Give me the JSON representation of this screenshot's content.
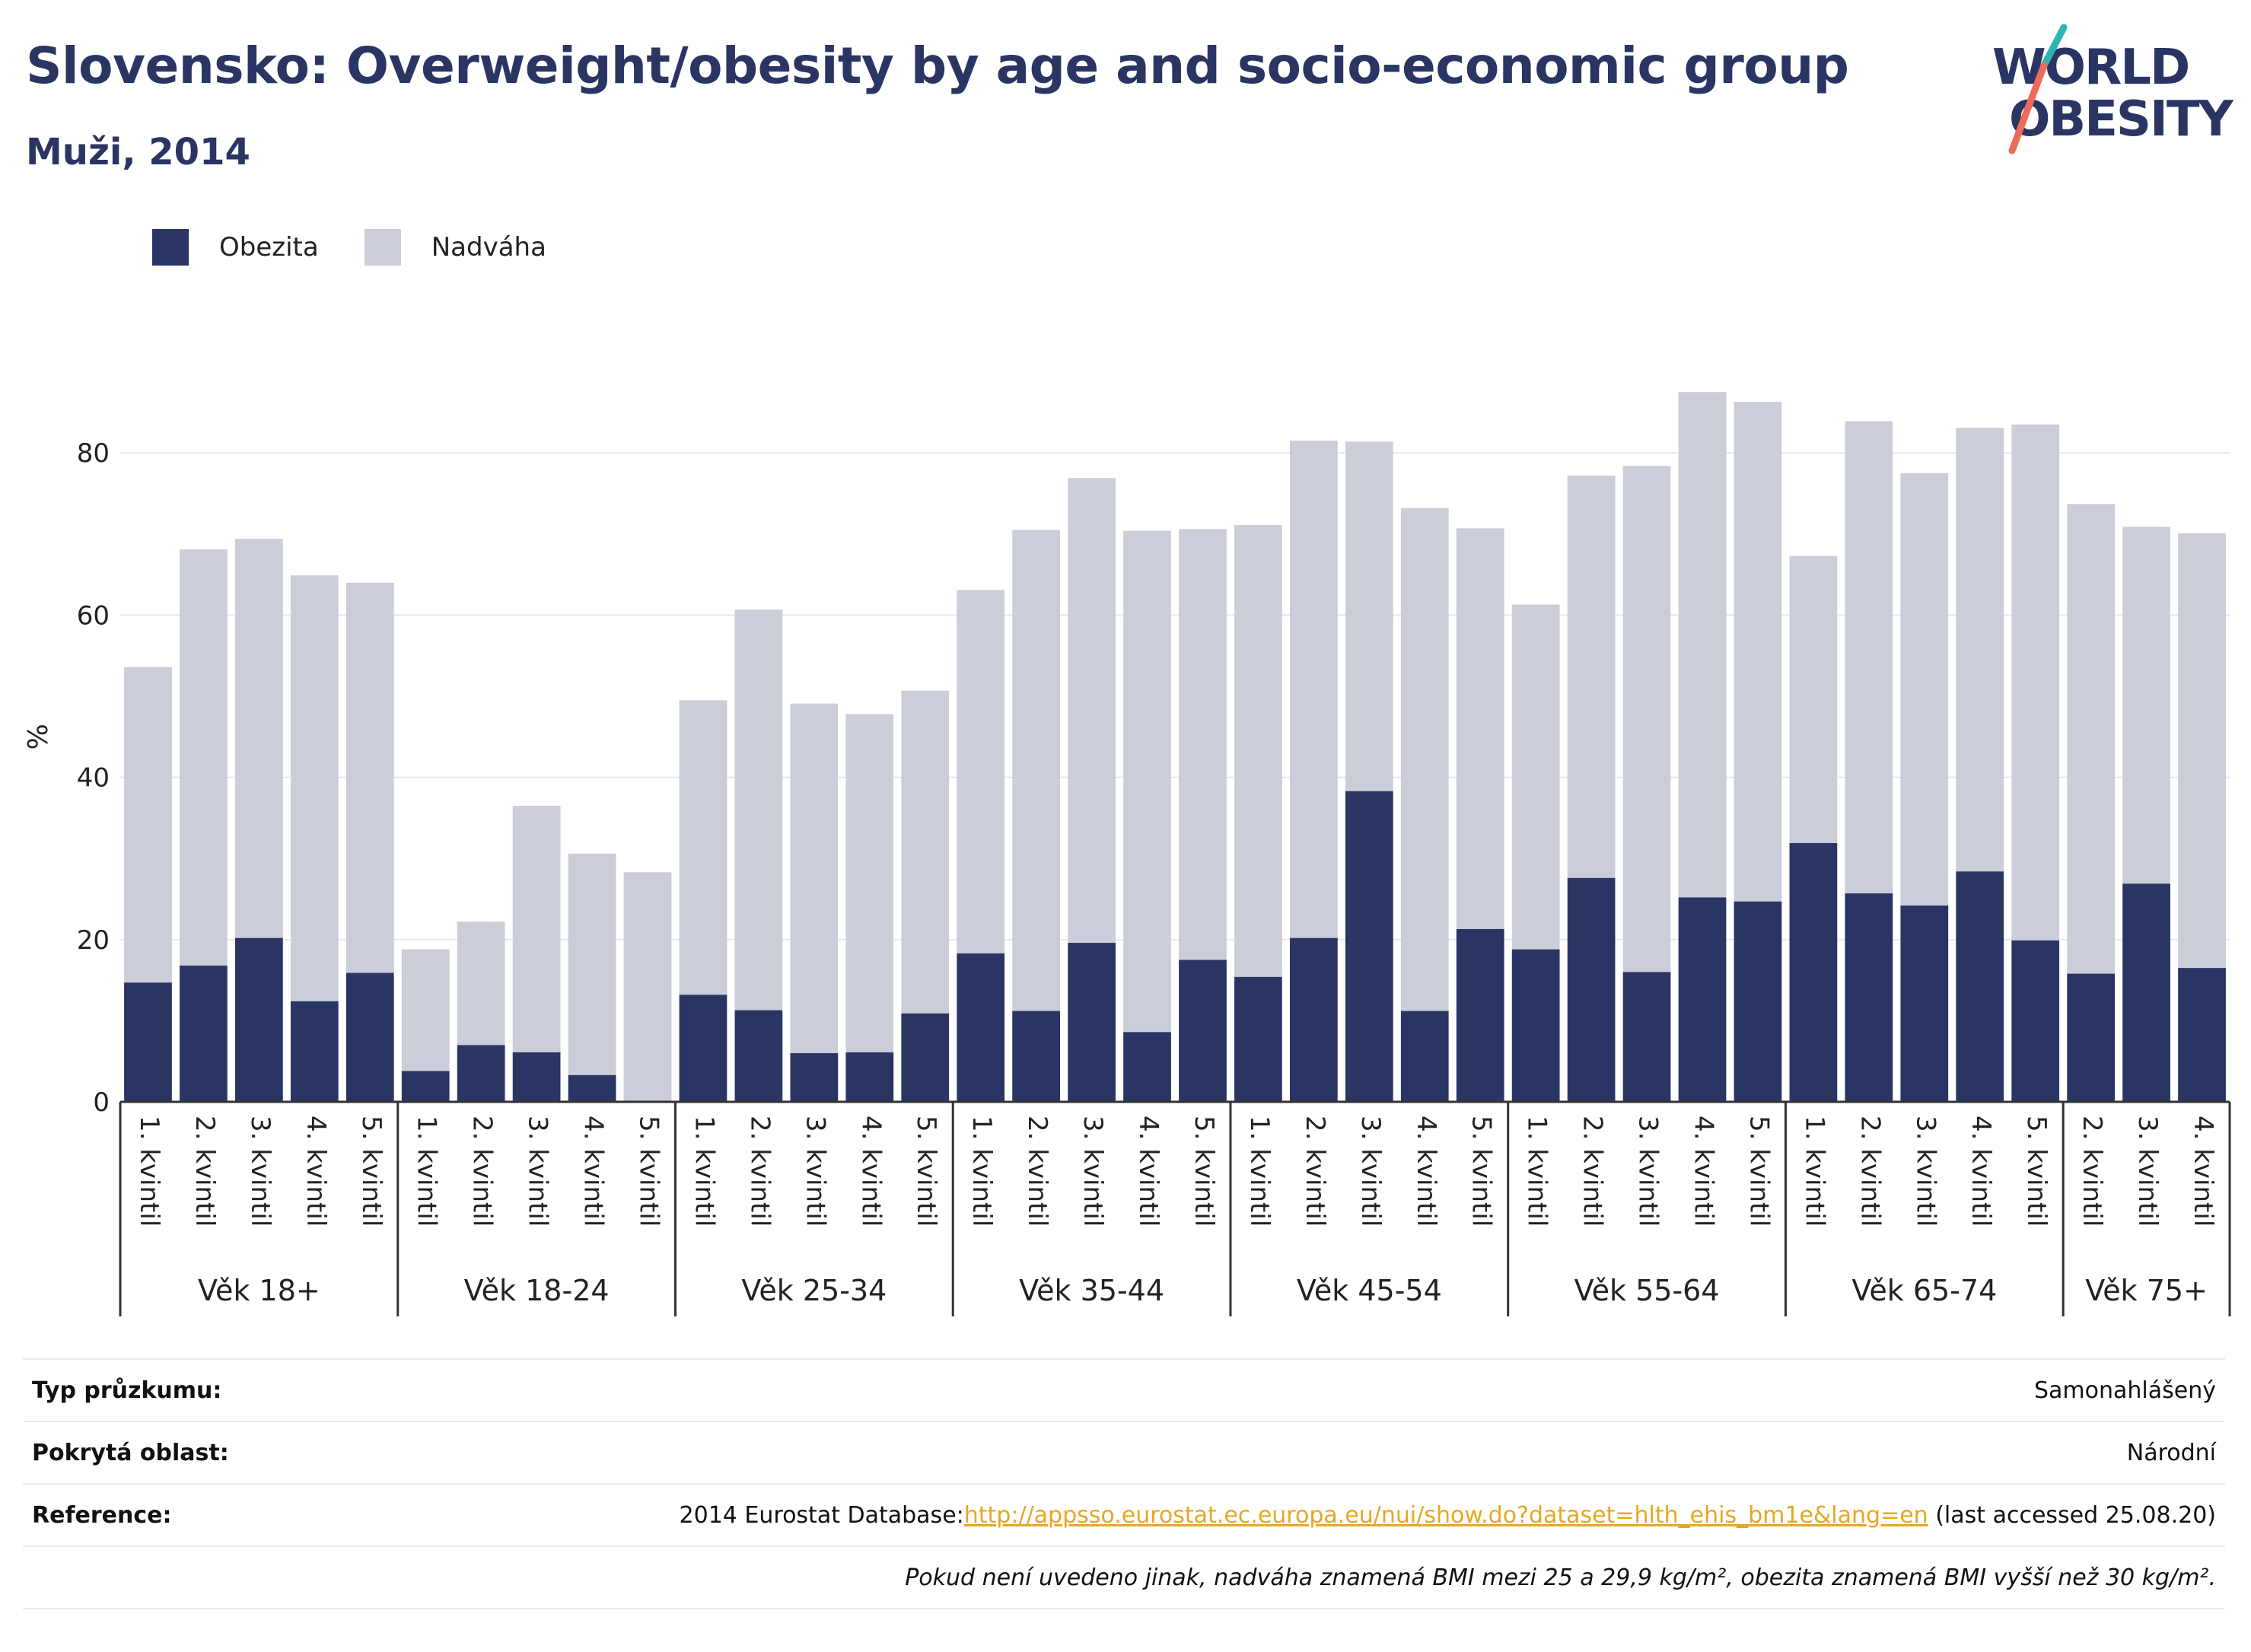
{
  "header": {
    "title": "Slovensko: Overweight/obesity by age and socio-economic group",
    "subtitle": "Muži, 2014"
  },
  "logo": {
    "line1": "WORLD",
    "line2": "OBESITY"
  },
  "colors": {
    "obesity": "#2a3563",
    "overweight": "#cbcdd9",
    "link": "#e8a81e",
    "logo_teal": "#2bb5b0",
    "logo_coral": "#ee6a5a"
  },
  "chart_data": {
    "type": "bar",
    "stacked": true,
    "title": "Slovensko: Overweight/obesity by age and socio-economic group",
    "subtitle": "Muži, 2014",
    "ylabel": "%",
    "xlabel": "",
    "ylim": [
      0,
      90
    ],
    "yticks": [
      0,
      20,
      40,
      60,
      80
    ],
    "grid": true,
    "legend_position": "top-left",
    "series": [
      {
        "name": "Obezita",
        "color": "#2a3563",
        "values": [
          14.7,
          16.8,
          20.2,
          12.4,
          15.9,
          3.8,
          7.0,
          6.1,
          3.3,
          0,
          13.2,
          11.3,
          6.0,
          6.1,
          10.9,
          18.3,
          11.2,
          19.6,
          8.6,
          17.5,
          15.4,
          20.2,
          38.3,
          11.2,
          21.3,
          18.8,
          27.6,
          16.0,
          25.2,
          24.7,
          31.9,
          25.7,
          24.2,
          28.4,
          19.9,
          15.8,
          26.9,
          16.5
        ]
      },
      {
        "name": "Nadváha",
        "color": "#cbcdd9",
        "values": [
          38.9,
          51.3,
          49.2,
          52.5,
          48.1,
          15.0,
          15.2,
          30.4,
          27.3,
          28.3,
          36.3,
          49.4,
          43.1,
          41.7,
          39.8,
          44.8,
          59.3,
          57.3,
          61.8,
          53.1,
          55.7,
          61.3,
          43.1,
          62.0,
          49.4,
          42.5,
          49.6,
          62.4,
          62.3,
          61.6,
          35.4,
          58.2,
          53.3,
          54.7,
          63.6,
          57.9,
          44.0,
          53.6
        ]
      }
    ],
    "categories": [
      "1. kvintil",
      "2. kvintil",
      "3. kvintil",
      "4. kvintil",
      "5. kvintil",
      "1. kvintil",
      "2. kvintil",
      "3. kvintil",
      "4. kvintil",
      "5. kvintil",
      "1. kvintil",
      "2. kvintil",
      "3. kvintil",
      "4. kvintil",
      "5. kvintil",
      "1. kvintil",
      "2. kvintil",
      "3. kvintil",
      "4. kvintil",
      "5. kvintil",
      "1. kvintil",
      "2. kvintil",
      "3. kvintil",
      "4. kvintil",
      "5. kvintil",
      "1. kvintil",
      "2. kvintil",
      "3. kvintil",
      "4. kvintil",
      "5. kvintil",
      "1. kvintil",
      "2. kvintil",
      "3. kvintil",
      "4. kvintil",
      "5. kvintil",
      "2. kvintil",
      "3. kvintil",
      "4. kvintil"
    ],
    "groups": [
      {
        "label": "Věk 18+",
        "count": 5
      },
      {
        "label": "Věk 18-24",
        "count": 5
      },
      {
        "label": "Věk 25-34",
        "count": 5
      },
      {
        "label": "Věk 35-44",
        "count": 5
      },
      {
        "label": "Věk 45-54",
        "count": 5
      },
      {
        "label": "Věk 55-64",
        "count": 5
      },
      {
        "label": "Věk 65-74",
        "count": 5
      },
      {
        "label": "Věk 75+",
        "count": 3
      }
    ]
  },
  "info": {
    "survey_type_label": "Typ průzkumu:",
    "survey_type_value": "Samonahlášený",
    "coverage_label": "Pokrytá oblast:",
    "coverage_value": "Národní",
    "reference_label": "Reference:",
    "reference_prefix": "2014 Eurostat Database:",
    "reference_link": "http://appsso.eurostat.ec.europa.eu/nui/show.do?dataset=hlth_ehis_bm1e&lang=en",
    "reference_suffix": " (last accessed 25.08.20)",
    "note": "Pokud není uvedeno jinak, nadváha znamená BMI mezi 25 a 29,9 kg/m², obezita znamená BMI vyšší než 30 kg/m²."
  }
}
